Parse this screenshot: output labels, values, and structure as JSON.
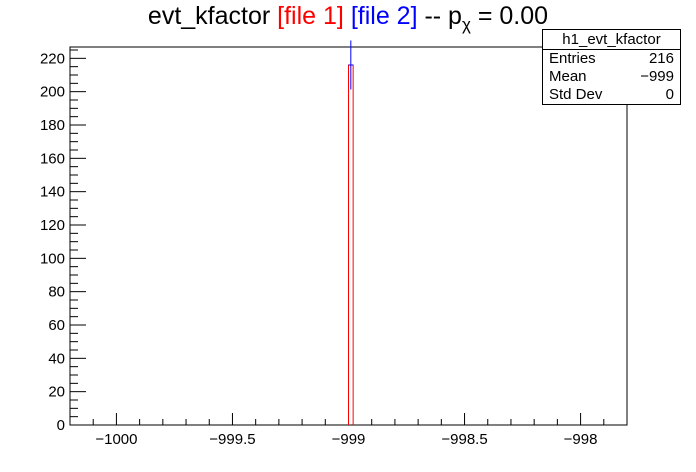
{
  "title": {
    "main": "evt_kfactor ",
    "file1": "[file 1]",
    "file2": "[file 2]",
    "sep": " -- p",
    "chi": "χ",
    "pval": " = 0.00"
  },
  "stats": {
    "name": "h1_evt_kfactor",
    "rows": [
      {
        "label": "Entries",
        "value": "216"
      },
      {
        "label": "Mean",
        "value": "−999"
      },
      {
        "label": "Std Dev",
        "value": "0"
      }
    ]
  },
  "colors": {
    "file1": "#ff0000",
    "file2": "#0000ff",
    "axis": "#000000"
  },
  "chart_data": {
    "type": "bar",
    "xlim": [
      -1000.2,
      -997.8
    ],
    "ylim": [
      0,
      226.8
    ],
    "x_ticks": [
      -1000,
      -999.5,
      -999,
      -998.5,
      -998
    ],
    "x_tick_labels": [
      "−1000",
      "−999.5",
      "−999",
      "−998.5",
      "−998"
    ],
    "y_ticks": [
      0,
      20,
      40,
      60,
      80,
      100,
      120,
      140,
      160,
      180,
      200,
      220
    ],
    "y_tick_labels": [
      "0",
      "20",
      "40",
      "60",
      "80",
      "100",
      "120",
      "140",
      "160",
      "180",
      "200",
      "220"
    ],
    "series": [
      {
        "name": "[file 1]",
        "color": "#ff0000",
        "bin_low": -999.0,
        "bin_high": -998.98,
        "value": 216
      },
      {
        "name": "[file 2]",
        "color": "#0000ff",
        "bin_low": -999.0,
        "bin_high": -998.98,
        "value": 216,
        "error": 14.7
      }
    ]
  }
}
